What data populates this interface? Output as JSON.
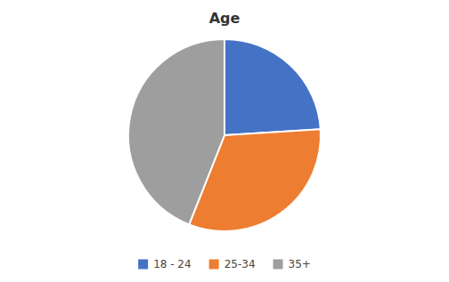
{
  "chart_data": {
    "type": "pie",
    "title": "Age",
    "categories": [
      "18 - 24",
      "25-34",
      "35+"
    ],
    "values": [
      24,
      32,
      44
    ],
    "colors": [
      "#4472C4",
      "#ED7D31",
      "#9E9E9E"
    ],
    "legend": "bottom"
  }
}
